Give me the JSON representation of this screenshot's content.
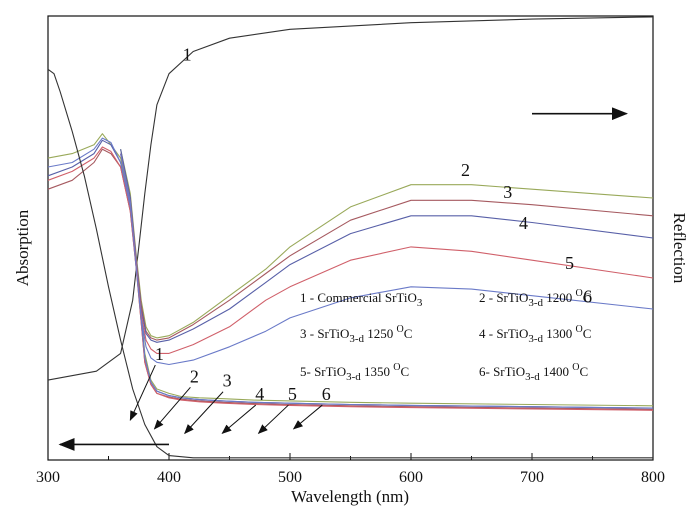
{
  "chart_data": {
    "type": "line",
    "title": "",
    "xlabel": "Wavelength (nm)",
    "ylabel_left": "Absorption",
    "ylabel_right": "Reflection",
    "xlim": [
      300,
      800
    ],
    "ylim": [
      0,
      100
    ],
    "x_ticks": [
      300,
      400,
      500,
      600,
      700,
      800
    ],
    "x_tick_labels": [
      "300",
      "400",
      "500",
      "600",
      "700",
      "800"
    ],
    "y_ticks_visible": false,
    "grid": false,
    "legend": {
      "placement": "lower-right",
      "entries": [
        {
          "num": "1",
          "sep": " - ",
          "name": "Commercial SrTiO",
          "sub": "3",
          "temp": "",
          "unit": ""
        },
        {
          "num": "2",
          "sep": " - ",
          "name": "SrTiO",
          "sub": "3-d",
          "temp": " 1200 ",
          "unit": "C"
        },
        {
          "num": "3",
          "sep": " - ",
          "name": "SrTiO",
          "sub": "3-d",
          "temp": " 1250 ",
          "unit": "C"
        },
        {
          "num": "4",
          "sep": " - ",
          "name": "SrTiO",
          "sub": "3-d",
          "temp": " 1300 ",
          "unit": "C"
        },
        {
          "num": "5",
          "sep": "- ",
          "name": "SrTiO",
          "sub": "3-d",
          "temp": " 1350 ",
          "unit": "C"
        },
        {
          "num": "6",
          "sep": "- ",
          "name": "SrTiO",
          "sub": "3-d",
          "temp": " 1400 ",
          "unit": "C"
        }
      ],
      "degree_mark": "O"
    },
    "reflection_series": [
      {
        "label": "1",
        "color": "#333333",
        "points": [
          [
            300,
            18
          ],
          [
            340,
            20
          ],
          [
            360,
            24
          ],
          [
            370,
            36
          ],
          [
            375,
            48
          ],
          [
            380,
            60
          ],
          [
            385,
            71
          ],
          [
            390,
            80
          ],
          [
            400,
            87
          ],
          [
            420,
            92
          ],
          [
            450,
            95
          ],
          [
            500,
            97
          ],
          [
            600,
            98.5
          ],
          [
            700,
            99.3
          ],
          [
            800,
            99.8
          ]
        ]
      },
      {
        "label": "2",
        "color": "#99a95a",
        "points": [
          [
            300,
            68
          ],
          [
            320,
            69
          ],
          [
            338,
            71
          ],
          [
            345,
            73.5
          ],
          [
            352,
            71
          ],
          [
            360,
            68
          ],
          [
            368,
            58
          ],
          [
            373,
            45
          ],
          [
            377,
            33
          ],
          [
            380,
            24
          ],
          [
            385,
            18
          ],
          [
            390,
            16
          ],
          [
            400,
            15
          ],
          [
            410,
            14.3
          ],
          [
            425,
            14
          ],
          [
            445,
            13.8
          ],
          [
            470,
            13.5
          ],
          [
            500,
            13.3
          ],
          [
            550,
            13
          ],
          [
            600,
            12.8
          ],
          [
            700,
            12.5
          ],
          [
            800,
            12.2
          ]
        ]
      },
      {
        "label": "3",
        "color": "#a65a60",
        "points": [
          [
            300,
            61
          ],
          [
            320,
            63
          ],
          [
            338,
            67
          ],
          [
            345,
            70
          ],
          [
            352,
            69
          ],
          [
            360,
            66
          ],
          [
            368,
            56
          ],
          [
            373,
            43
          ],
          [
            377,
            31
          ],
          [
            380,
            22
          ],
          [
            385,
            17
          ],
          [
            390,
            15
          ],
          [
            400,
            14.2
          ],
          [
            410,
            13.7
          ],
          [
            425,
            13.3
          ],
          [
            445,
            13
          ],
          [
            470,
            12.7
          ],
          [
            500,
            12.5
          ],
          [
            550,
            12.2
          ],
          [
            600,
            12
          ],
          [
            700,
            11.7
          ],
          [
            800,
            11.4
          ]
        ]
      },
      {
        "label": "4",
        "color": "#5860a8",
        "points": [
          [
            300,
            64
          ],
          [
            320,
            66
          ],
          [
            338,
            69
          ],
          [
            345,
            72
          ],
          [
            352,
            71
          ],
          [
            360,
            67
          ],
          [
            368,
            57
          ],
          [
            373,
            44
          ],
          [
            377,
            32
          ],
          [
            380,
            23
          ],
          [
            385,
            17.5
          ],
          [
            390,
            15.5
          ],
          [
            400,
            14.5
          ],
          [
            410,
            14
          ],
          [
            425,
            13.6
          ],
          [
            445,
            13.3
          ],
          [
            470,
            13
          ],
          [
            500,
            12.8
          ],
          [
            550,
            12.5
          ],
          [
            600,
            12.3
          ],
          [
            700,
            12
          ],
          [
            800,
            11.7
          ]
        ]
      },
      {
        "label": "5",
        "color": "#d0606a",
        "points": [
          [
            300,
            63
          ],
          [
            320,
            65
          ],
          [
            338,
            68
          ],
          [
            345,
            70.5
          ],
          [
            352,
            69.5
          ],
          [
            360,
            66
          ],
          [
            368,
            56
          ],
          [
            373,
            43
          ],
          [
            377,
            31
          ],
          [
            380,
            22
          ],
          [
            385,
            17
          ],
          [
            390,
            15
          ],
          [
            400,
            14
          ],
          [
            410,
            13.5
          ],
          [
            425,
            13.1
          ],
          [
            445,
            12.8
          ],
          [
            470,
            12.5
          ],
          [
            500,
            12.3
          ],
          [
            550,
            12
          ],
          [
            600,
            11.8
          ],
          [
            700,
            11.5
          ],
          [
            800,
            11.2
          ]
        ]
      },
      {
        "label": "6",
        "color": "#6a7ac8",
        "points": [
          [
            300,
            66
          ],
          [
            320,
            67
          ],
          [
            338,
            70
          ],
          [
            345,
            72.5
          ],
          [
            352,
            71.5
          ],
          [
            360,
            67
          ],
          [
            368,
            57
          ],
          [
            373,
            44
          ],
          [
            377,
            32
          ],
          [
            380,
            23
          ],
          [
            385,
            17.5
          ],
          [
            390,
            15.5
          ],
          [
            400,
            14.5
          ],
          [
            410,
            14
          ],
          [
            425,
            13.6
          ],
          [
            445,
            13.3
          ],
          [
            470,
            13
          ],
          [
            500,
            12.8
          ],
          [
            550,
            12.5
          ],
          [
            600,
            12.3
          ],
          [
            700,
            12
          ],
          [
            800,
            11.7
          ]
        ]
      }
    ],
    "absorption_series": [
      {
        "label": "1",
        "color": "#333333",
        "points": [
          [
            300,
            88
          ],
          [
            305,
            87
          ],
          [
            310,
            83
          ],
          [
            320,
            74
          ],
          [
            330,
            64
          ],
          [
            340,
            52
          ],
          [
            350,
            39
          ],
          [
            360,
            27
          ],
          [
            370,
            16
          ],
          [
            380,
            8
          ],
          [
            390,
            3
          ],
          [
            400,
            1
          ],
          [
            420,
            0.5
          ],
          [
            800,
            0.5
          ]
        ]
      },
      {
        "label": "2",
        "color": "#99a95a",
        "points": [
          [
            360,
            70
          ],
          [
            368,
            60
          ],
          [
            373,
            46
          ],
          [
            377,
            36
          ],
          [
            381,
            30
          ],
          [
            385,
            28
          ],
          [
            390,
            27.5
          ],
          [
            400,
            28
          ],
          [
            420,
            31
          ],
          [
            450,
            37
          ],
          [
            480,
            43
          ],
          [
            500,
            48
          ],
          [
            550,
            57
          ],
          [
            600,
            62
          ],
          [
            650,
            62
          ],
          [
            700,
            61
          ],
          [
            800,
            59
          ]
        ]
      },
      {
        "label": "3",
        "color": "#a65a60",
        "points": [
          [
            360,
            69
          ],
          [
            368,
            59
          ],
          [
            373,
            45
          ],
          [
            377,
            35
          ],
          [
            381,
            29
          ],
          [
            385,
            27.5
          ],
          [
            390,
            27
          ],
          [
            400,
            27.5
          ],
          [
            420,
            30.5
          ],
          [
            450,
            36
          ],
          [
            480,
            42
          ],
          [
            500,
            46
          ],
          [
            550,
            54
          ],
          [
            600,
            58.5
          ],
          [
            650,
            58.5
          ],
          [
            700,
            57.5
          ],
          [
            800,
            55
          ]
        ]
      },
      {
        "label": "4",
        "color": "#5860a8",
        "points": [
          [
            360,
            70
          ],
          [
            368,
            59
          ],
          [
            373,
            45
          ],
          [
            377,
            34
          ],
          [
            381,
            28.5
          ],
          [
            385,
            27
          ],
          [
            390,
            26.5
          ],
          [
            400,
            27
          ],
          [
            420,
            29.5
          ],
          [
            450,
            34
          ],
          [
            480,
            40
          ],
          [
            500,
            44
          ],
          [
            550,
            51
          ],
          [
            600,
            55
          ],
          [
            650,
            55
          ],
          [
            700,
            53.5
          ],
          [
            800,
            50
          ]
        ]
      },
      {
        "label": "5",
        "color": "#d0606a",
        "points": [
          [
            360,
            69
          ],
          [
            368,
            58
          ],
          [
            373,
            44
          ],
          [
            377,
            33
          ],
          [
            381,
            27
          ],
          [
            385,
            25
          ],
          [
            390,
            24
          ],
          [
            400,
            24
          ],
          [
            420,
            26
          ],
          [
            450,
            30
          ],
          [
            480,
            36
          ],
          [
            500,
            39
          ],
          [
            550,
            45
          ],
          [
            600,
            48
          ],
          [
            650,
            47
          ],
          [
            700,
            45
          ],
          [
            800,
            41
          ]
        ]
      },
      {
        "label": "6",
        "color": "#6a7ac8",
        "points": [
          [
            360,
            69
          ],
          [
            368,
            58
          ],
          [
            373,
            43
          ],
          [
            377,
            32
          ],
          [
            381,
            25.5
          ],
          [
            385,
            23
          ],
          [
            390,
            22
          ],
          [
            400,
            21.5
          ],
          [
            420,
            22.5
          ],
          [
            450,
            25.5
          ],
          [
            480,
            29
          ],
          [
            500,
            32
          ],
          [
            550,
            36.5
          ],
          [
            600,
            39
          ],
          [
            650,
            38.5
          ],
          [
            700,
            37
          ],
          [
            800,
            34
          ]
        ]
      }
    ],
    "upper_labels": [
      {
        "text": "1",
        "x": 415,
        "y": 90
      },
      {
        "text": "2",
        "x": 645,
        "y": 64
      },
      {
        "text": "3",
        "x": 680,
        "y": 59
      },
      {
        "text": "4",
        "x": 693,
        "y": 52
      },
      {
        "text": "5",
        "x": 731,
        "y": 43
      },
      {
        "text": "6",
        "x": 746,
        "y": 35.5
      }
    ],
    "lower_labels": [
      {
        "text": "1",
        "label_at": [
          392,
          22.5
        ],
        "tip_at": [
          368,
          9
        ]
      },
      {
        "text": "2",
        "label_at": [
          421,
          17.5
        ],
        "tip_at": [
          388,
          7
        ]
      },
      {
        "text": "3",
        "label_at": [
          448,
          16.5
        ],
        "tip_at": [
          413,
          6
        ]
      },
      {
        "text": "4",
        "label_at": [
          475,
          13.5
        ],
        "tip_at": [
          444,
          6
        ]
      },
      {
        "text": "5",
        "label_at": [
          502,
          13.5
        ],
        "tip_at": [
          474,
          6
        ]
      },
      {
        "text": "6",
        "label_at": [
          530,
          13.5
        ],
        "tip_at": [
          503,
          7
        ]
      }
    ],
    "direction_arrows": [
      {
        "axis": "Reflection",
        "direction": "right",
        "from": [
          700,
          78
        ],
        "to": [
          778,
          78
        ]
      },
      {
        "axis": "Absorption",
        "direction": "left",
        "from": [
          400,
          3.5
        ],
        "to": [
          310,
          3.5
        ]
      }
    ]
  }
}
